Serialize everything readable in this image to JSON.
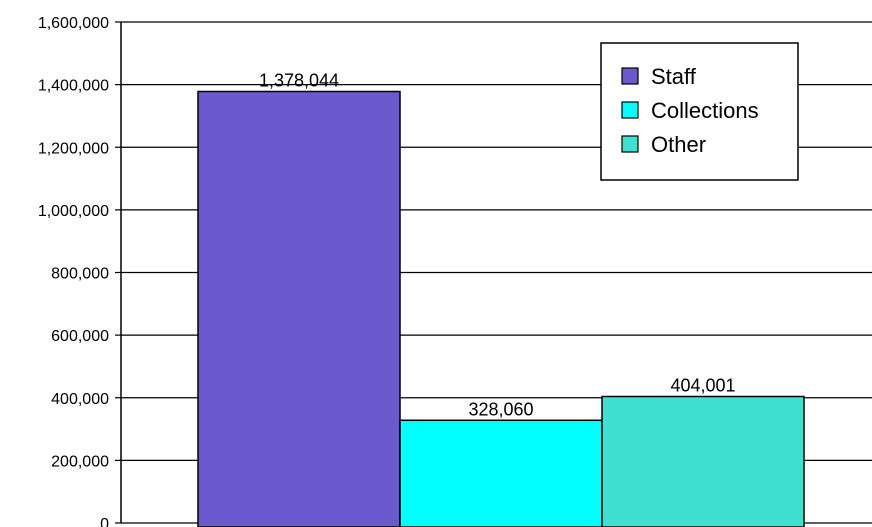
{
  "chart_data": {
    "type": "bar",
    "title": "",
    "xlabel": "",
    "ylabel": "",
    "ylim": [
      0,
      1600000
    ],
    "y_ticks": [
      0,
      200000,
      400000,
      600000,
      800000,
      1000000,
      1200000,
      1400000,
      1600000
    ],
    "y_tick_labels": [
      "0",
      "200,000",
      "400,000",
      "600,000",
      "800,000",
      "1,000,000",
      "1,200,000",
      "1,400,000",
      "1,600,000"
    ],
    "grid": true,
    "legend_position": "top-right",
    "series": [
      {
        "name": "Staff",
        "value": 1378044,
        "label": "1,378,044",
        "color": "#6a5acd"
      },
      {
        "name": "Collections",
        "value": 328060,
        "label": "328,060",
        "color": "#00ffff"
      },
      {
        "name": "Other",
        "value": 404001,
        "label": "404,001",
        "color": "#40e0d0"
      }
    ]
  }
}
